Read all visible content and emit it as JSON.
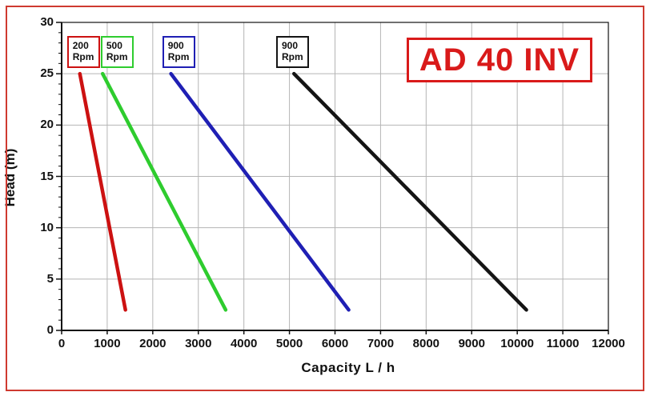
{
  "badge": {
    "text": "AD 40 INV",
    "color": "#d91a1a"
  },
  "chart_data": {
    "type": "line",
    "title": "AD 40 INV",
    "xlabel": "Capacity  L / h",
    "ylabel": "Head (m)",
    "xlim": [
      0,
      12000
    ],
    "ylim": [
      0,
      30
    ],
    "x_ticks": [
      0,
      1000,
      2000,
      3000,
      4000,
      5000,
      6000,
      7000,
      8000,
      9000,
      10000,
      11000,
      12000
    ],
    "y_ticks": [
      0,
      5,
      10,
      15,
      20,
      25,
      30
    ],
    "y_minor_step": 1,
    "grid": true,
    "legend_position": "boxes-above-lines",
    "colors": {
      "grid": "#b5b5b5",
      "axis": "#111111",
      "outer_border": "#cf3a30"
    },
    "series": [
      {
        "name": "200 Rpm",
        "rpm": "200",
        "unit": "Rpm",
        "color": "#cc1111",
        "points": [
          [
            400,
            25
          ],
          [
            1400,
            2
          ]
        ],
        "label_x": 470
      },
      {
        "name": "500 Rpm",
        "rpm": "500",
        "unit": "Rpm",
        "color": "#2ecc2e",
        "points": [
          [
            900,
            25
          ],
          [
            3600,
            2
          ]
        ],
        "label_x": 1210
      },
      {
        "name": "900 Rpm",
        "rpm": "900",
        "unit": "Rpm",
        "color": "#1f1fb4",
        "points": [
          [
            2400,
            25
          ],
          [
            6300,
            2
          ]
        ],
        "label_x": 2560
      },
      {
        "name": "900 Rpm",
        "rpm": "900",
        "unit": "Rpm",
        "color": "#141414",
        "points": [
          [
            5100,
            25
          ],
          [
            10200,
            2
          ]
        ],
        "label_x": 5060
      }
    ]
  }
}
